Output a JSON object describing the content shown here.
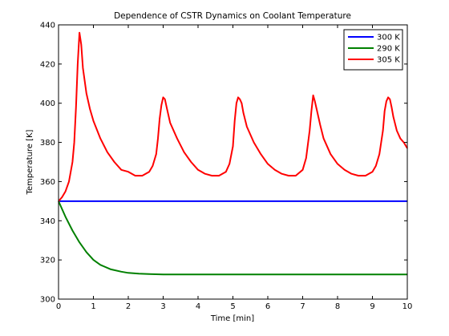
{
  "chart_data": {
    "type": "line",
    "title": "Dependence of CSTR Dynamics on Coolant Temperature",
    "xlabel": "Time [min]",
    "ylabel": "Temperature [K]",
    "xlim": [
      0,
      10
    ],
    "ylim": [
      300,
      440
    ],
    "xticks": [
      0,
      1,
      2,
      3,
      4,
      5,
      6,
      7,
      8,
      9,
      10
    ],
    "yticks": [
      300,
      320,
      340,
      360,
      380,
      400,
      420,
      440
    ],
    "grid": false,
    "legend_position": "top-right",
    "series": [
      {
        "name": "300 K",
        "color": "#0000ff",
        "x": [
          0,
          10
        ],
        "y": [
          350,
          350
        ]
      },
      {
        "name": "290 K",
        "color": "#008000",
        "x": [
          0,
          0.2,
          0.4,
          0.6,
          0.8,
          1.0,
          1.2,
          1.5,
          1.8,
          2.0,
          2.3,
          2.6,
          3.0,
          3.5,
          4,
          5,
          6,
          7,
          8,
          9,
          10
        ],
        "y": [
          350,
          342,
          335,
          329,
          324,
          320,
          317.5,
          315.2,
          314,
          313.4,
          313,
          312.8,
          312.6,
          312.6,
          312.6,
          312.6,
          312.6,
          312.6,
          312.6,
          312.6,
          312.6
        ]
      },
      {
        "name": "305 K",
        "color": "#ff0000",
        "x": [
          0,
          0.1,
          0.2,
          0.3,
          0.4,
          0.45,
          0.5,
          0.55,
          0.6,
          0.65,
          0.7,
          0.8,
          0.9,
          1.0,
          1.2,
          1.4,
          1.6,
          1.8,
          2.0,
          2.2,
          2.4,
          2.6,
          2.7,
          2.8,
          2.85,
          2.9,
          2.95,
          3.0,
          3.05,
          3.1,
          3.2,
          3.4,
          3.6,
          3.8,
          4.0,
          4.2,
          4.4,
          4.6,
          4.8,
          4.9,
          5.0,
          5.05,
          5.1,
          5.15,
          5.2,
          5.25,
          5.3,
          5.4,
          5.6,
          5.8,
          6.0,
          6.2,
          6.4,
          6.6,
          6.8,
          7.0,
          7.1,
          7.2,
          7.25,
          7.3,
          7.35,
          7.4,
          7.5,
          7.6,
          7.8,
          8.0,
          8.2,
          8.4,
          8.6,
          8.8,
          9.0,
          9.1,
          9.2,
          9.3,
          9.35,
          9.4,
          9.45,
          9.5,
          9.55,
          9.6,
          9.7,
          9.8,
          9.9,
          10.0
        ],
        "y": [
          350,
          352,
          355,
          360,
          370,
          380,
          398,
          420,
          436,
          430,
          418,
          405,
          397,
          391,
          382,
          375,
          370,
          366,
          365,
          363,
          363,
          365,
          368,
          374,
          382,
          392,
          399,
          403,
          402,
          398,
          390,
          382,
          375,
          370,
          366,
          364,
          363,
          363,
          365,
          369,
          378,
          391,
          400,
          403,
          402,
          400,
          395,
          388,
          380,
          374,
          369,
          366,
          364,
          363,
          363,
          366,
          372,
          386,
          396,
          404,
          401,
          397,
          389,
          382,
          374,
          369,
          366,
          364,
          363,
          363,
          365,
          368,
          374,
          386,
          396,
          401,
          403,
          402,
          398,
          393,
          386,
          382,
          380,
          377
        ]
      }
    ]
  }
}
